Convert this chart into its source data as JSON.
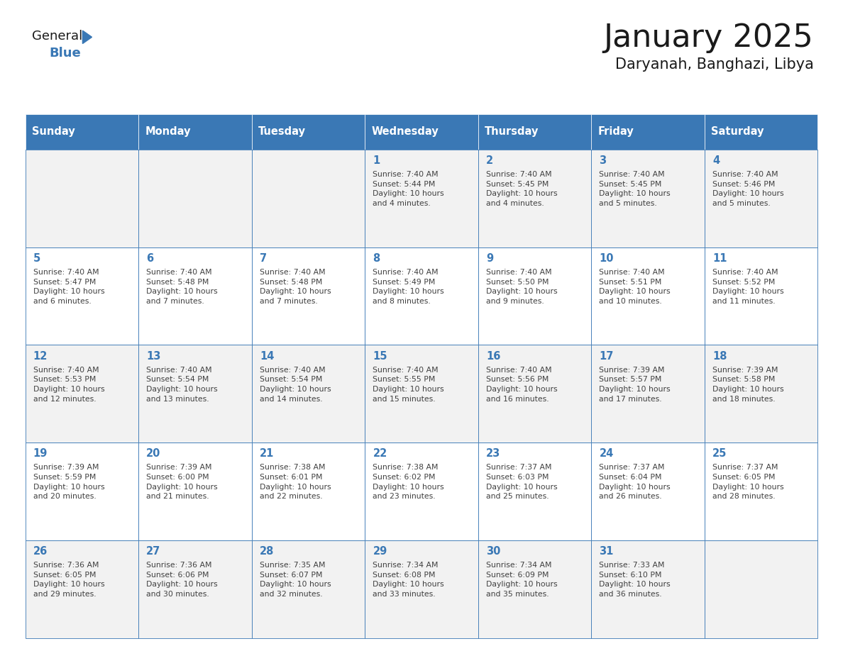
{
  "title": "January 2025",
  "subtitle": "Daryanah, Banghazi, Libya",
  "days_of_week": [
    "Sunday",
    "Monday",
    "Tuesday",
    "Wednesday",
    "Thursday",
    "Friday",
    "Saturday"
  ],
  "header_bg": "#3a78b5",
  "header_text_color": "#ffffff",
  "cell_bg_odd": "#f2f2f2",
  "cell_bg_even": "#ffffff",
  "cell_border_color": "#3a78b5",
  "day_number_color": "#3a78b5",
  "text_color": "#404040",
  "logo_text_color": "#1a1a1a",
  "logo_blue_color": "#3a78b5",
  "title_color": "#1a1a1a",
  "calendar_data": [
    [
      {
        "day": null,
        "info": null
      },
      {
        "day": null,
        "info": null
      },
      {
        "day": null,
        "info": null
      },
      {
        "day": 1,
        "info": "Sunrise: 7:40 AM\nSunset: 5:44 PM\nDaylight: 10 hours\nand 4 minutes."
      },
      {
        "day": 2,
        "info": "Sunrise: 7:40 AM\nSunset: 5:45 PM\nDaylight: 10 hours\nand 4 minutes."
      },
      {
        "day": 3,
        "info": "Sunrise: 7:40 AM\nSunset: 5:45 PM\nDaylight: 10 hours\nand 5 minutes."
      },
      {
        "day": 4,
        "info": "Sunrise: 7:40 AM\nSunset: 5:46 PM\nDaylight: 10 hours\nand 5 minutes."
      }
    ],
    [
      {
        "day": 5,
        "info": "Sunrise: 7:40 AM\nSunset: 5:47 PM\nDaylight: 10 hours\nand 6 minutes."
      },
      {
        "day": 6,
        "info": "Sunrise: 7:40 AM\nSunset: 5:48 PM\nDaylight: 10 hours\nand 7 minutes."
      },
      {
        "day": 7,
        "info": "Sunrise: 7:40 AM\nSunset: 5:48 PM\nDaylight: 10 hours\nand 7 minutes."
      },
      {
        "day": 8,
        "info": "Sunrise: 7:40 AM\nSunset: 5:49 PM\nDaylight: 10 hours\nand 8 minutes."
      },
      {
        "day": 9,
        "info": "Sunrise: 7:40 AM\nSunset: 5:50 PM\nDaylight: 10 hours\nand 9 minutes."
      },
      {
        "day": 10,
        "info": "Sunrise: 7:40 AM\nSunset: 5:51 PM\nDaylight: 10 hours\nand 10 minutes."
      },
      {
        "day": 11,
        "info": "Sunrise: 7:40 AM\nSunset: 5:52 PM\nDaylight: 10 hours\nand 11 minutes."
      }
    ],
    [
      {
        "day": 12,
        "info": "Sunrise: 7:40 AM\nSunset: 5:53 PM\nDaylight: 10 hours\nand 12 minutes."
      },
      {
        "day": 13,
        "info": "Sunrise: 7:40 AM\nSunset: 5:54 PM\nDaylight: 10 hours\nand 13 minutes."
      },
      {
        "day": 14,
        "info": "Sunrise: 7:40 AM\nSunset: 5:54 PM\nDaylight: 10 hours\nand 14 minutes."
      },
      {
        "day": 15,
        "info": "Sunrise: 7:40 AM\nSunset: 5:55 PM\nDaylight: 10 hours\nand 15 minutes."
      },
      {
        "day": 16,
        "info": "Sunrise: 7:40 AM\nSunset: 5:56 PM\nDaylight: 10 hours\nand 16 minutes."
      },
      {
        "day": 17,
        "info": "Sunrise: 7:39 AM\nSunset: 5:57 PM\nDaylight: 10 hours\nand 17 minutes."
      },
      {
        "day": 18,
        "info": "Sunrise: 7:39 AM\nSunset: 5:58 PM\nDaylight: 10 hours\nand 18 minutes."
      }
    ],
    [
      {
        "day": 19,
        "info": "Sunrise: 7:39 AM\nSunset: 5:59 PM\nDaylight: 10 hours\nand 20 minutes."
      },
      {
        "day": 20,
        "info": "Sunrise: 7:39 AM\nSunset: 6:00 PM\nDaylight: 10 hours\nand 21 minutes."
      },
      {
        "day": 21,
        "info": "Sunrise: 7:38 AM\nSunset: 6:01 PM\nDaylight: 10 hours\nand 22 minutes."
      },
      {
        "day": 22,
        "info": "Sunrise: 7:38 AM\nSunset: 6:02 PM\nDaylight: 10 hours\nand 23 minutes."
      },
      {
        "day": 23,
        "info": "Sunrise: 7:37 AM\nSunset: 6:03 PM\nDaylight: 10 hours\nand 25 minutes."
      },
      {
        "day": 24,
        "info": "Sunrise: 7:37 AM\nSunset: 6:04 PM\nDaylight: 10 hours\nand 26 minutes."
      },
      {
        "day": 25,
        "info": "Sunrise: 7:37 AM\nSunset: 6:05 PM\nDaylight: 10 hours\nand 28 minutes."
      }
    ],
    [
      {
        "day": 26,
        "info": "Sunrise: 7:36 AM\nSunset: 6:05 PM\nDaylight: 10 hours\nand 29 minutes."
      },
      {
        "day": 27,
        "info": "Sunrise: 7:36 AM\nSunset: 6:06 PM\nDaylight: 10 hours\nand 30 minutes."
      },
      {
        "day": 28,
        "info": "Sunrise: 7:35 AM\nSunset: 6:07 PM\nDaylight: 10 hours\nand 32 minutes."
      },
      {
        "day": 29,
        "info": "Sunrise: 7:34 AM\nSunset: 6:08 PM\nDaylight: 10 hours\nand 33 minutes."
      },
      {
        "day": 30,
        "info": "Sunrise: 7:34 AM\nSunset: 6:09 PM\nDaylight: 10 hours\nand 35 minutes."
      },
      {
        "day": 31,
        "info": "Sunrise: 7:33 AM\nSunset: 6:10 PM\nDaylight: 10 hours\nand 36 minutes."
      },
      {
        "day": null,
        "info": null
      }
    ]
  ]
}
